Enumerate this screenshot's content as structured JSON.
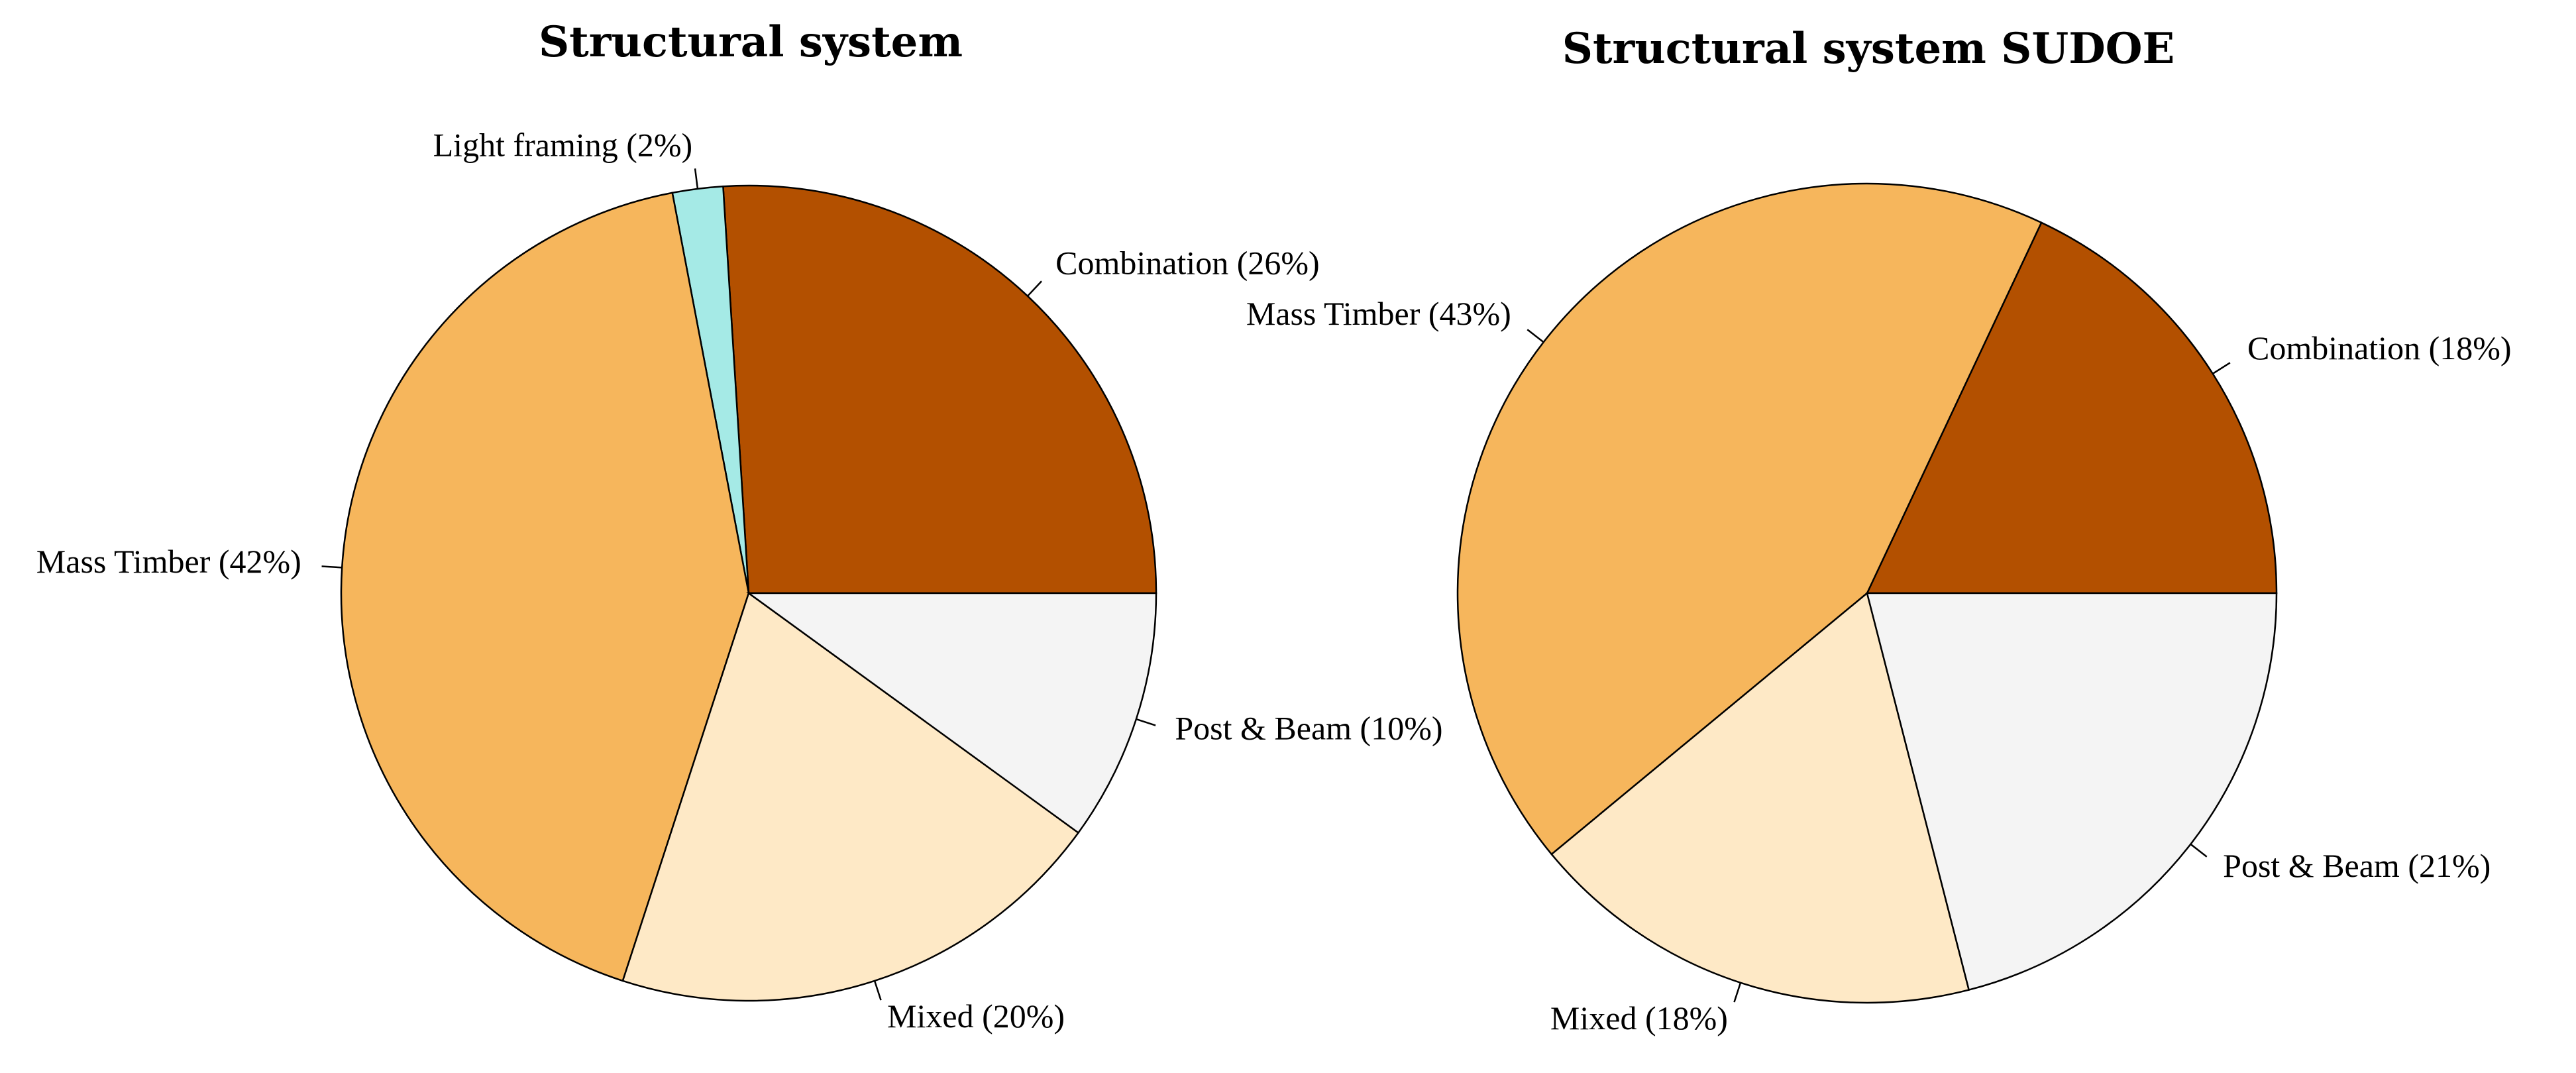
{
  "chart_data": [
    {
      "type": "pie",
      "title": "Structural system",
      "start_angle_deg": 0,
      "direction": "counterclockwise",
      "slices": [
        {
          "name": "Combination",
          "value": 26,
          "label": "Combination (26%)",
          "color": "#b35000"
        },
        {
          "name": "Light framing",
          "value": 2,
          "label": "Light framing (2%)",
          "color": "#a5eae6"
        },
        {
          "name": "Mass Timber",
          "value": 42,
          "label": "Mass Timber (42%)",
          "color": "#f6b65c"
        },
        {
          "name": "Mixed",
          "value": 20,
          "label": "Mixed (20%)",
          "color": "#fee9c6"
        },
        {
          "name": "Post & Beam",
          "value": 10,
          "label": "Post & Beam (10%)",
          "color": "#f4f4f4"
        }
      ]
    },
    {
      "type": "pie",
      "title": "Structural system SUDOE",
      "start_angle_deg": 0,
      "direction": "counterclockwise",
      "slices": [
        {
          "name": "Combination",
          "value": 18,
          "label": "Combination (18%)",
          "color": "#b35000"
        },
        {
          "name": "Mass Timber",
          "value": 43,
          "label": "Mass Timber (43%)",
          "color": "#f6b65c"
        },
        {
          "name": "Mixed",
          "value": 18,
          "label": "Mixed (18%)",
          "color": "#fee9c6"
        },
        {
          "name": "Post & Beam",
          "value": 21,
          "label": "Post & Beam (21%)",
          "color": "#f4f4f4"
        }
      ]
    }
  ]
}
